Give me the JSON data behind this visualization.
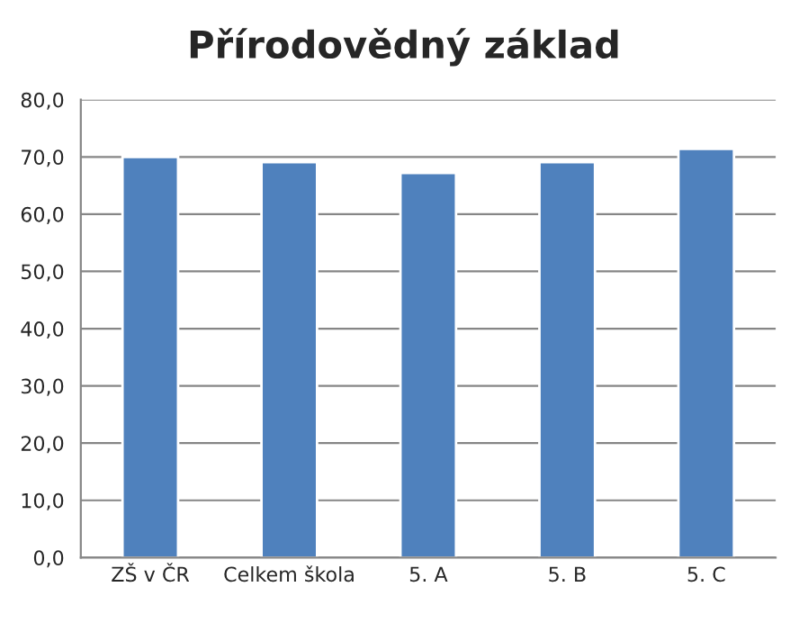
{
  "chart_data": {
    "type": "bar",
    "title": "Přírodovědný základ",
    "categories": [
      "ZŠ v ČR",
      "Celkem škola",
      "5. A",
      "5. B",
      "5. C"
    ],
    "values": [
      70.0,
      69.1,
      67.2,
      69.1,
      71.4
    ],
    "color": "#4f81bd",
    "ylim": [
      0,
      80
    ],
    "yticks": [
      {
        "value": 0,
        "label": "0,0"
      },
      {
        "value": 10,
        "label": "10,0"
      },
      {
        "value": 20,
        "label": "20,0"
      },
      {
        "value": 30,
        "label": "30,0"
      },
      {
        "value": 40,
        "label": "40,0"
      },
      {
        "value": 50,
        "label": "50,0"
      },
      {
        "value": 60,
        "label": "60,0"
      },
      {
        "value": 70,
        "label": "70,0"
      },
      {
        "value": 80,
        "label": "80,0"
      }
    ],
    "grid": "y",
    "legend": false
  }
}
